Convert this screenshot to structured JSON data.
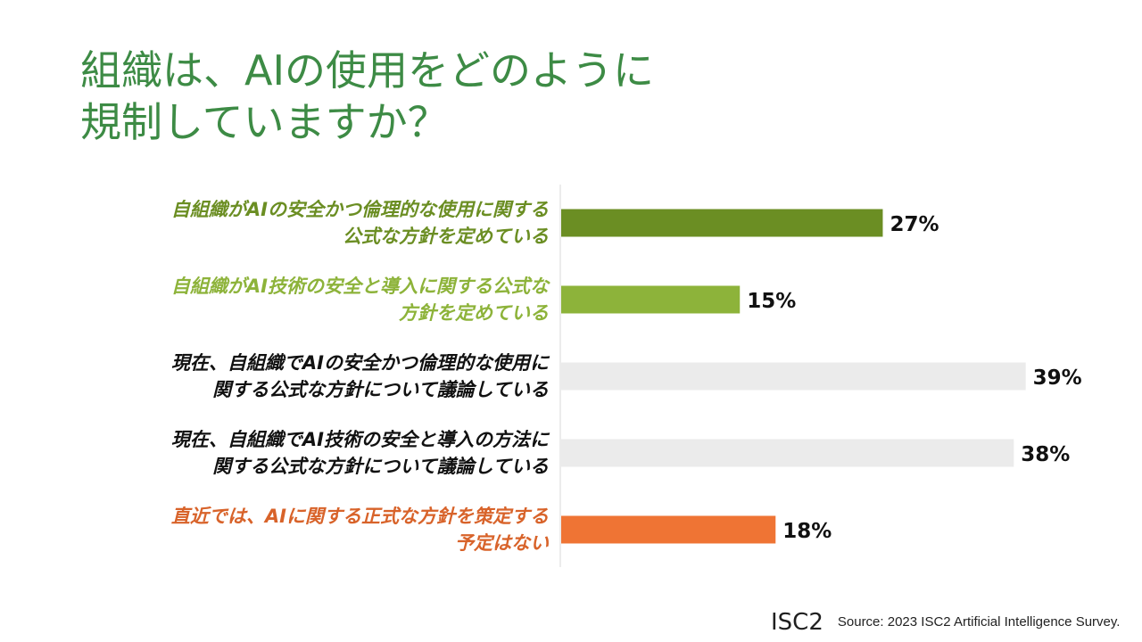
{
  "title": {
    "line1": "組織は、AIの使用をどのように",
    "line2": "規制していますか？"
  },
  "chart_data": {
    "type": "bar",
    "orientation": "horizontal",
    "title": "組織は、AIの使用をどのように規制していますか？",
    "xlim": [
      0,
      40
    ],
    "grid": false,
    "value_format": "percent",
    "categories": [
      {
        "lines": [
          "自組織がAIの安全かつ倫理的な使用に関する",
          "公式な方針を定めている"
        ],
        "color": "#6b8e23"
      },
      {
        "lines": [
          "自組織がAI技術の安全と導入に関する公式な",
          "方針を定めている"
        ],
        "color": "#8db33a"
      },
      {
        "lines": [
          "現在、自組織でAIの安全かつ倫理的な使用に",
          "関する公式な方針について議論している"
        ],
        "color": "#111111"
      },
      {
        "lines": [
          "現在、自組織でAI技術の安全と導入の方法に",
          "関する公式な方針について議論している"
        ],
        "color": "#111111"
      },
      {
        "lines": [
          "直近では、AIに関する正式な方針を策定する",
          "予定はない"
        ],
        "color": "#d8632a"
      }
    ],
    "values": [
      27,
      15,
      39,
      38,
      18
    ],
    "value_labels": [
      "27%",
      "15%",
      "39%",
      "38%",
      "18%"
    ],
    "bar_colors": [
      "#6b8e23",
      "#8db33a",
      "#ebebeb",
      "#ebebeb",
      "#ef7434"
    ],
    "axis_line_color": "#d9d9d9"
  },
  "footer": {
    "logo": "ISC2",
    "source": "Source: 2023 ISC2 Artificial Intelligence Survey."
  }
}
